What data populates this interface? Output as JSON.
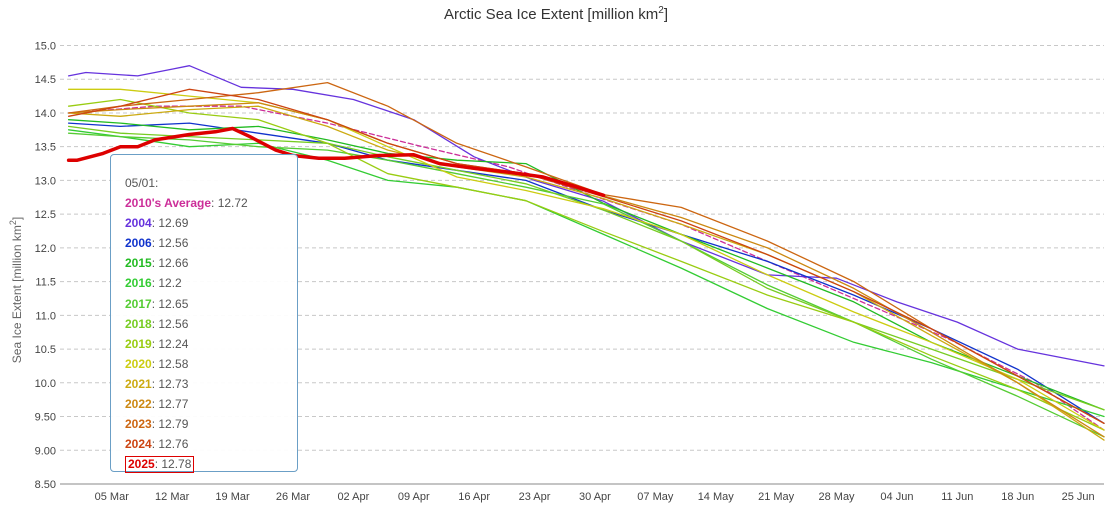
{
  "chart_data": {
    "type": "line",
    "title": "Arctic Sea Ice Extent [million km²]",
    "title_text": "Arctic Sea Ice Extent [million km",
    "title_sup": "2",
    "title_end": "]",
    "ylabel": "Sea Ice Extent [million km²]",
    "ylabel_text": "Sea Ice Extent [million km",
    "ylabel_sup": "2",
    "ylabel_end": "]",
    "ylim": [
      8.5,
      15.2
    ],
    "yticks": [
      "8.50",
      "9.00",
      "9.50",
      "10.0",
      "10.5",
      "11.0",
      "11.5",
      "12.0",
      "12.5",
      "13.0",
      "13.5",
      "14.0",
      "14.5",
      "15.0"
    ],
    "xlim": [
      "02-27",
      "06-28"
    ],
    "xticks": [
      "05 Mar",
      "12 Mar",
      "19 Mar",
      "26 Mar",
      "02 Apr",
      "09 Apr",
      "16 Apr",
      "23 Apr",
      "30 Apr",
      "07 May",
      "14 May",
      "21 May",
      "28 May",
      "04 Jun",
      "11 Jun",
      "18 Jun",
      "25 Jun"
    ],
    "grid": true,
    "tooltip": {
      "date": "05/01:",
      "entries": [
        {
          "name": "2010's Average",
          "value": "12.72",
          "color": "#cc2e99"
        },
        {
          "name": "2004",
          "value": "12.69",
          "color": "#6633dd"
        },
        {
          "name": "2006",
          "value": "12.56",
          "color": "#1133cc"
        },
        {
          "name": "2015",
          "value": "12.66",
          "color": "#22bb22"
        },
        {
          "name": "2016",
          "value": "12.2",
          "color": "#33cc33"
        },
        {
          "name": "2017",
          "value": "12.65",
          "color": "#55cc33"
        },
        {
          "name": "2018",
          "value": "12.56",
          "color": "#77cc22"
        },
        {
          "name": "2019",
          "value": "12.24",
          "color": "#99cc11"
        },
        {
          "name": "2020",
          "value": "12.58",
          "color": "#cccc11"
        },
        {
          "name": "2021",
          "value": "12.73",
          "color": "#ccaa11"
        },
        {
          "name": "2022",
          "value": "12.77",
          "color": "#cc8811"
        },
        {
          "name": "2023",
          "value": "12.79",
          "color": "#cc6611"
        },
        {
          "name": "2024",
          "value": "12.76",
          "color": "#cc4411"
        },
        {
          "name": "2025",
          "value": "12.78",
          "color": "#dd0000"
        }
      ]
    },
    "series": [
      {
        "name": "2010's Average",
        "color": "#cc2e99",
        "dashed": true,
        "x": [
          "02-28",
          "03-10",
          "03-20",
          "03-30",
          "04-10",
          "04-20",
          "05-01",
          "05-10",
          "05-20",
          "05-30",
          "06-10",
          "06-20",
          "06-28"
        ],
        "values": [
          14.0,
          14.1,
          14.1,
          13.85,
          13.5,
          13.2,
          12.72,
          12.35,
          11.8,
          11.25,
          10.65,
          10.0,
          9.3
        ]
      },
      {
        "name": "2004",
        "color": "#6633dd",
        "x": [
          "02-28",
          "03-02",
          "03-08",
          "03-12",
          "03-14",
          "03-20",
          "03-26",
          "04-02",
          "04-09",
          "04-16",
          "04-23",
          "05-01",
          "05-10",
          "05-20",
          "05-28",
          "06-04",
          "06-11",
          "06-18",
          "06-28"
        ],
        "values": [
          14.55,
          14.6,
          14.55,
          14.65,
          14.7,
          14.38,
          14.35,
          14.2,
          13.9,
          13.35,
          13.0,
          12.69,
          12.1,
          11.6,
          11.55,
          11.2,
          10.9,
          10.5,
          10.25
        ]
      },
      {
        "name": "2006",
        "color": "#1133cc",
        "x": [
          "02-28",
          "03-06",
          "03-14",
          "03-22",
          "03-30",
          "04-06",
          "04-14",
          "04-22",
          "05-01",
          "05-10",
          "05-20",
          "05-30",
          "06-08",
          "06-18",
          "06-28"
        ],
        "values": [
          13.85,
          13.8,
          13.85,
          13.7,
          13.55,
          13.3,
          13.15,
          13.0,
          12.56,
          12.2,
          11.8,
          11.3,
          10.8,
          10.2,
          9.4
        ]
      },
      {
        "name": "2015",
        "color": "#22bb22",
        "x": [
          "02-28",
          "03-06",
          "03-14",
          "03-22",
          "03-30",
          "04-06",
          "04-14",
          "04-22",
          "05-01",
          "05-10",
          "05-20",
          "05-30",
          "06-08",
          "06-18",
          "06-28"
        ],
        "values": [
          13.9,
          13.85,
          13.75,
          13.8,
          13.6,
          13.4,
          13.3,
          13.25,
          12.66,
          12.2,
          11.7,
          11.2,
          10.6,
          10.1,
          9.6
        ]
      },
      {
        "name": "2016",
        "color": "#33cc33",
        "x": [
          "02-28",
          "03-06",
          "03-14",
          "03-22",
          "03-30",
          "04-06",
          "04-14",
          "04-22",
          "05-01",
          "05-10",
          "05-20",
          "05-30",
          "06-08",
          "06-18",
          "06-28"
        ],
        "values": [
          13.75,
          13.65,
          13.5,
          13.55,
          13.3,
          13.0,
          12.9,
          12.7,
          12.2,
          11.7,
          11.1,
          10.6,
          10.3,
          9.9,
          9.5
        ]
      },
      {
        "name": "2017",
        "color": "#55cc33",
        "x": [
          "02-28",
          "03-06",
          "03-14",
          "03-22",
          "03-30",
          "04-06",
          "04-14",
          "04-22",
          "05-01",
          "05-10",
          "05-20",
          "05-30",
          "06-08",
          "06-18",
          "06-28"
        ],
        "values": [
          13.7,
          13.65,
          13.6,
          13.5,
          13.45,
          13.3,
          13.1,
          12.9,
          12.65,
          12.1,
          11.45,
          10.9,
          10.35,
          9.8,
          9.2
        ]
      },
      {
        "name": "2018",
        "color": "#77cc22",
        "x": [
          "02-28",
          "03-06",
          "03-14",
          "03-22",
          "03-30",
          "04-06",
          "04-14",
          "04-22",
          "05-01",
          "05-10",
          "05-20",
          "05-30",
          "06-08",
          "06-18",
          "06-28"
        ],
        "values": [
          13.8,
          13.7,
          13.65,
          13.6,
          13.55,
          13.35,
          13.15,
          12.95,
          12.56,
          12.1,
          11.4,
          10.9,
          10.5,
          10.05,
          9.6
        ]
      },
      {
        "name": "2019",
        "color": "#99cc11",
        "x": [
          "02-28",
          "03-06",
          "03-14",
          "03-22",
          "03-30",
          "04-06",
          "04-14",
          "04-22",
          "05-01",
          "05-10",
          "05-20",
          "05-30",
          "06-08",
          "06-18",
          "06-28"
        ],
        "values": [
          14.1,
          14.2,
          14.0,
          13.9,
          13.55,
          13.1,
          12.9,
          12.7,
          12.24,
          11.8,
          11.3,
          10.9,
          10.4,
          9.9,
          9.3
        ]
      },
      {
        "name": "2020",
        "color": "#cccc11",
        "x": [
          "02-28",
          "03-06",
          "03-14",
          "03-22",
          "03-30",
          "04-06",
          "04-14",
          "04-22",
          "05-01",
          "05-10",
          "05-20",
          "05-30",
          "06-08",
          "06-18",
          "06-28"
        ],
        "values": [
          14.35,
          14.35,
          14.25,
          14.15,
          13.9,
          13.5,
          13.05,
          12.85,
          12.58,
          12.2,
          11.6,
          11.05,
          10.6,
          10.05,
          9.3
        ]
      },
      {
        "name": "2021",
        "color": "#ccaa11",
        "x": [
          "02-28",
          "03-06",
          "03-14",
          "03-22",
          "03-30",
          "04-06",
          "04-14",
          "04-22",
          "05-01",
          "05-10",
          "05-20",
          "05-30",
          "06-08",
          "06-18",
          "06-28"
        ],
        "values": [
          14.0,
          13.95,
          14.05,
          14.1,
          13.8,
          13.45,
          13.2,
          13.05,
          12.73,
          12.35,
          11.9,
          11.35,
          10.7,
          10.0,
          9.15
        ]
      },
      {
        "name": "2022",
        "color": "#cc8811",
        "x": [
          "02-28",
          "03-06",
          "03-14",
          "03-22",
          "03-30",
          "04-06",
          "04-14",
          "04-22",
          "05-01",
          "05-10",
          "05-20",
          "05-30",
          "06-08",
          "06-18",
          "06-28"
        ],
        "values": [
          14.0,
          14.05,
          14.1,
          14.15,
          13.9,
          13.55,
          13.25,
          13.1,
          12.77,
          12.45,
          12.0,
          11.4,
          10.75,
          10.0,
          9.2
        ]
      },
      {
        "name": "2023",
        "color": "#cc6611",
        "x": [
          "02-28",
          "03-06",
          "03-14",
          "03-22",
          "03-30",
          "04-06",
          "04-14",
          "04-22",
          "05-01",
          "05-10",
          "05-20",
          "05-30",
          "06-08",
          "06-18",
          "06-28"
        ],
        "values": [
          14.0,
          14.1,
          14.2,
          14.3,
          14.45,
          14.1,
          13.55,
          13.2,
          12.79,
          12.6,
          12.1,
          11.5,
          10.8,
          10.1,
          9.4
        ]
      },
      {
        "name": "2024",
        "color": "#cc4411",
        "x": [
          "02-28",
          "03-06",
          "03-14",
          "03-22",
          "03-30",
          "04-06",
          "04-14",
          "04-22",
          "05-01",
          "05-10",
          "05-20",
          "05-30",
          "06-08",
          "06-18",
          "06-28"
        ],
        "values": [
          13.95,
          14.1,
          14.35,
          14.2,
          13.9,
          13.55,
          13.25,
          13.1,
          12.76,
          12.4,
          11.9,
          11.35,
          10.8,
          10.1,
          9.4
        ]
      },
      {
        "name": "2025",
        "color": "#dd0000",
        "bold": true,
        "x": [
          "02-28",
          "03-01",
          "03-04",
          "03-06",
          "03-08",
          "03-10",
          "03-14",
          "03-17",
          "03-19",
          "03-21",
          "03-24",
          "03-26",
          "03-29",
          "04-01",
          "04-05",
          "04-09",
          "04-12",
          "04-16",
          "04-20",
          "04-24",
          "04-28",
          "05-01"
        ],
        "values": [
          13.3,
          13.3,
          13.4,
          13.5,
          13.5,
          13.6,
          13.68,
          13.72,
          13.77,
          13.65,
          13.45,
          13.37,
          13.33,
          13.33,
          13.37,
          13.38,
          13.25,
          13.18,
          13.12,
          13.05,
          12.9,
          12.78
        ]
      }
    ]
  }
}
